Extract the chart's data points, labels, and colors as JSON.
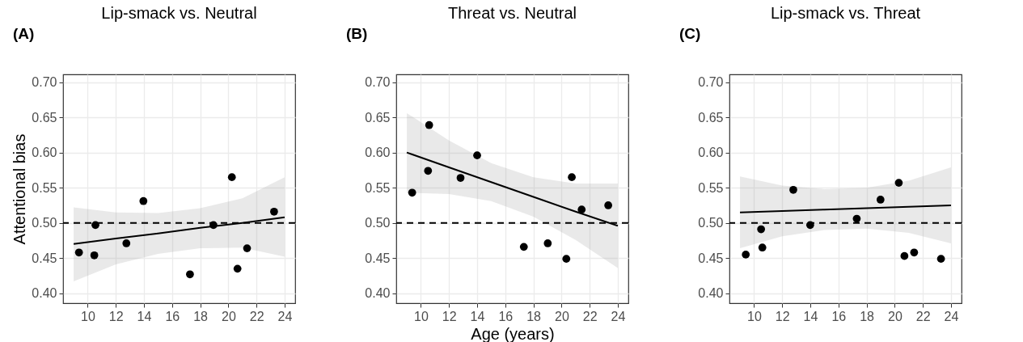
{
  "chart_data": [
    {
      "type": "scatter",
      "title": "Lip-smack vs. Neutral",
      "ylabel": "Attentional bias",
      "annotations": [
        "(A)"
      ],
      "xlim": [
        8.25,
        24.75
      ],
      "ylim": [
        0.386,
        0.711
      ],
      "xticks": [
        10,
        12,
        14,
        16,
        18,
        20,
        22,
        24
      ],
      "yticks": [
        {
          "value": 0.4,
          "label": "0.40"
        },
        {
          "value": 0.45,
          "label": "0.45"
        },
        {
          "value": 0.5,
          "label": "0.50"
        },
        {
          "value": 0.55,
          "label": "0.55"
        },
        {
          "value": 0.6,
          "label": "0.60"
        },
        {
          "value": 0.65,
          "label": "0.65"
        },
        {
          "value": 0.7,
          "label": "0.70"
        }
      ],
      "grid": true,
      "ref_lines": [
        {
          "axis": "y",
          "value": 0.5,
          "color": "#000000",
          "line_style": "dashed"
        }
      ],
      "series": [
        {
          "type": "scatter",
          "color": "#000000",
          "x": [
            9.38,
            10.47,
            10.55,
            12.75,
            13.96,
            17.27,
            18.94,
            20.25,
            20.65,
            21.33,
            23.25
          ],
          "values": [
            0.458,
            0.454,
            0.497,
            0.471,
            0.531,
            0.427,
            0.497,
            0.565,
            0.435,
            0.464,
            0.516
          ]
        },
        {
          "type": "line",
          "color": "#000000",
          "x": [
            9,
            12,
            15,
            18,
            21,
            24
          ],
          "values": [
            0.47,
            0.478,
            0.485,
            0.493,
            0.5,
            0.508
          ],
          "lower": [
            0.417,
            0.441,
            0.456,
            0.464,
            0.465,
            0.452
          ],
          "upper": [
            0.522,
            0.515,
            0.514,
            0.521,
            0.535,
            0.565
          ]
        }
      ]
    },
    {
      "type": "scatter",
      "title": "Threat vs. Neutral",
      "xlabel": "Age (years)",
      "annotations": [
        "(B)"
      ],
      "xlim": [
        8.25,
        24.75
      ],
      "ylim": [
        0.386,
        0.711
      ],
      "xticks": [
        10,
        12,
        14,
        16,
        18,
        20,
        22,
        24
      ],
      "yticks": [
        {
          "value": 0.4,
          "label": "0.40"
        },
        {
          "value": 0.45,
          "label": "0.45"
        },
        {
          "value": 0.5,
          "label": "0.50"
        },
        {
          "value": 0.55,
          "label": "0.55"
        },
        {
          "value": 0.6,
          "label": "0.60"
        },
        {
          "value": 0.65,
          "label": "0.65"
        },
        {
          "value": 0.7,
          "label": "0.70"
        }
      ],
      "grid": true,
      "ref_lines": [
        {
          "axis": "y",
          "value": 0.5,
          "color": "#000000",
          "line_style": "dashed"
        }
      ],
      "series": [
        {
          "type": "scatter",
          "color": "#000000",
          "x": [
            9.38,
            10.59,
            10.51,
            12.82,
            14.0,
            17.32,
            19.02,
            20.34,
            20.73,
            21.43,
            23.32
          ],
          "values": [
            0.543,
            0.639,
            0.574,
            0.564,
            0.596,
            0.466,
            0.471,
            0.449,
            0.565,
            0.519,
            0.525
          ]
        },
        {
          "type": "line",
          "color": "#000000",
          "x": [
            9,
            12,
            15,
            18,
            21,
            24
          ],
          "values": [
            0.6,
            0.579,
            0.558,
            0.537,
            0.516,
            0.496
          ],
          "lower": [
            0.543,
            0.541,
            0.531,
            0.509,
            0.476,
            0.436
          ],
          "upper": [
            0.656,
            0.617,
            0.585,
            0.565,
            0.556,
            0.556
          ]
        }
      ]
    },
    {
      "type": "scatter",
      "title": "Lip-smack vs. Threat",
      "annotations": [
        "(C)"
      ],
      "xlim": [
        8.25,
        24.75
      ],
      "ylim": [
        0.386,
        0.711
      ],
      "xticks": [
        10,
        12,
        14,
        16,
        18,
        20,
        22,
        24
      ],
      "yticks": [
        {
          "value": 0.4,
          "label": "0.40"
        },
        {
          "value": 0.45,
          "label": "0.45"
        },
        {
          "value": 0.5,
          "label": "0.50"
        },
        {
          "value": 0.55,
          "label": "0.55"
        },
        {
          "value": 0.6,
          "label": "0.60"
        },
        {
          "value": 0.65,
          "label": "0.65"
        },
        {
          "value": 0.7,
          "label": "0.70"
        }
      ],
      "grid": true,
      "ref_lines": [
        {
          "axis": "y",
          "value": 0.5,
          "color": "#000000",
          "line_style": "dashed"
        }
      ],
      "series": [
        {
          "type": "scatter",
          "color": "#000000",
          "x": [
            9.41,
            10.5,
            10.59,
            12.79,
            13.99,
            17.3,
            18.99,
            20.29,
            20.69,
            21.38,
            23.29
          ],
          "values": [
            0.455,
            0.491,
            0.465,
            0.547,
            0.497,
            0.506,
            0.533,
            0.557,
            0.453,
            0.458,
            0.449
          ]
        },
        {
          "type": "line",
          "color": "#000000",
          "x": [
            9,
            12,
            15,
            18,
            21,
            24
          ],
          "values": [
            0.515,
            0.517,
            0.519,
            0.521,
            0.523,
            0.525
          ],
          "lower": [
            0.464,
            0.481,
            0.49,
            0.492,
            0.486,
            0.471
          ],
          "upper": [
            0.566,
            0.553,
            0.548,
            0.55,
            0.56,
            0.579
          ]
        }
      ]
    }
  ]
}
